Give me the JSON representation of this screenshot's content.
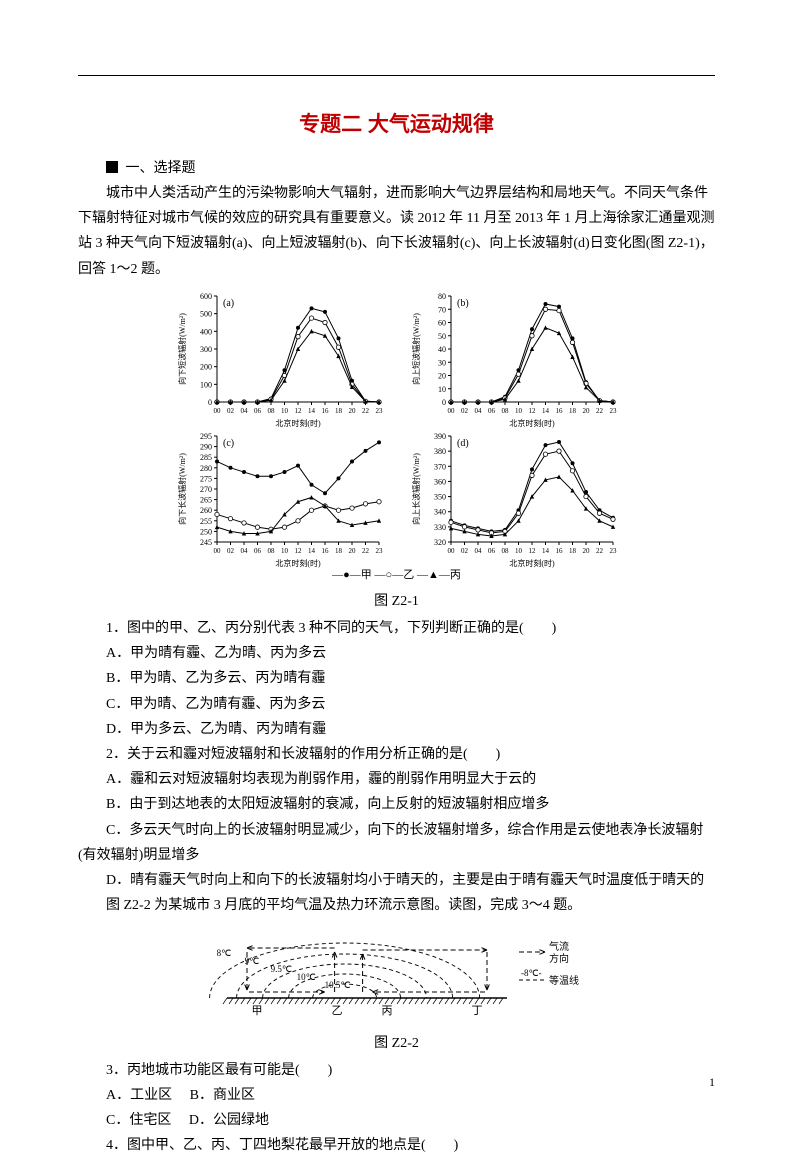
{
  "title": "专题二  大气运动规律",
  "section1_label": "一、选择题",
  "intro_para": "城市中人类活动产生的污染物影响大气辐射，进而影响大气边界层结构和局地天气。不同天气条件下辐射特征对城市气候的效应的研究具有重要意义。读 2012 年 11 月至 2013 年 1 月上海徐家汇通量观测站 3 种天气向下短波辐射(a)、向上短波辐射(b)、向下长波辐射(c)、向上长波辐射(d)日变化图(图 Z2-1)，回答 1～2 题。",
  "fig1_caption": "图 Z2-1",
  "legend_text": "—●—甲 —○—乙 —▲—丙",
  "chart_a": {
    "label": "(a)",
    "ylabel": "向下短波辐射(W/m²)",
    "xlabel": "北京时刻(时)",
    "xticks": [
      "00",
      "02",
      "04",
      "06",
      "08",
      "10",
      "12",
      "14",
      "16",
      "18",
      "20",
      "22",
      "23"
    ],
    "yticks": [
      "0",
      "100",
      "200",
      "300",
      "400",
      "500",
      "600"
    ],
    "series": {
      "jia": [
        0,
        0,
        0,
        0,
        20,
        180,
        420,
        530,
        510,
        360,
        120,
        5,
        0
      ],
      "yi": [
        0,
        0,
        0,
        0,
        15,
        150,
        370,
        475,
        450,
        310,
        100,
        4,
        0
      ],
      "bing": [
        0,
        0,
        0,
        0,
        10,
        120,
        300,
        400,
        375,
        260,
        85,
        3,
        0
      ]
    },
    "colors": {
      "axis": "#000000",
      "bg": "#ffffff"
    }
  },
  "chart_b": {
    "label": "(b)",
    "ylabel": "向上短波辐射(W/m²)",
    "xlabel": "北京时刻(时)",
    "xticks": [
      "00",
      "02",
      "04",
      "06",
      "08",
      "10",
      "12",
      "14",
      "16",
      "18",
      "20",
      "22",
      "23"
    ],
    "yticks": [
      "0",
      "10",
      "20",
      "30",
      "40",
      "50",
      "60",
      "70",
      "80"
    ],
    "series": {
      "jia": [
        0,
        0,
        0,
        0,
        4,
        24,
        55,
        74,
        72,
        48,
        15,
        1,
        0
      ],
      "yi": [
        0,
        0,
        0,
        0,
        3,
        21,
        50,
        70,
        69,
        45,
        14,
        1,
        0
      ],
      "bing": [
        0,
        0,
        0,
        0,
        2,
        16,
        40,
        56,
        52,
        34,
        11,
        1,
        0
      ]
    },
    "colors": {
      "axis": "#000000",
      "bg": "#ffffff"
    }
  },
  "chart_c": {
    "label": "(c)",
    "ylabel": "向下长波辐射(W/m²)",
    "xlabel": "北京时刻(时)",
    "xticks": [
      "00",
      "02",
      "04",
      "06",
      "08",
      "10",
      "12",
      "14",
      "16",
      "18",
      "20",
      "22",
      "23"
    ],
    "yticks": [
      "245",
      "250",
      "255",
      "260",
      "265",
      "270",
      "275",
      "280",
      "285",
      "290",
      "295"
    ],
    "series": {
      "jia": [
        283,
        280,
        278,
        276,
        276,
        278,
        281,
        272,
        268,
        275,
        283,
        288,
        292
      ],
      "yi": [
        258,
        256,
        254,
        252,
        251,
        252,
        255,
        260,
        262,
        260,
        261,
        263,
        264
      ],
      "bing": [
        252,
        250,
        249,
        249,
        250,
        258,
        264,
        266,
        262,
        255,
        253,
        254,
        255
      ]
    },
    "colors": {
      "axis": "#000000",
      "bg": "#ffffff"
    }
  },
  "chart_d": {
    "label": "(d)",
    "ylabel": "向上长波辐射(W/m²)",
    "xlabel": "北京时刻(时)",
    "xticks": [
      "00",
      "02",
      "04",
      "06",
      "08",
      "10",
      "12",
      "14",
      "16",
      "18",
      "20",
      "22",
      "23"
    ],
    "yticks": [
      "320",
      "330",
      "340",
      "350",
      "360",
      "370",
      "380",
      "390"
    ],
    "series": {
      "jia": [
        334,
        331,
        329,
        327,
        328,
        341,
        368,
        384,
        386,
        372,
        353,
        341,
        336
      ],
      "yi": [
        333,
        330,
        328,
        326,
        327,
        339,
        364,
        378,
        380,
        367,
        350,
        339,
        335
      ],
      "bing": [
        329,
        327,
        325,
        324,
        325,
        334,
        350,
        361,
        363,
        354,
        342,
        334,
        330
      ]
    },
    "colors": {
      "axis": "#000000",
      "bg": "#ffffff"
    }
  },
  "q1": {
    "stem": "1．图中的甲、乙、丙分别代表 3 种不同的天气，下列判断正确的是(　　)",
    "A": "A．甲为晴有霾、乙为晴、丙为多云",
    "B": "B．甲为晴、乙为多云、丙为晴有霾",
    "C": "C．甲为晴、乙为晴有霾、丙为多云",
    "D": "D．甲为多云、乙为晴、丙为晴有霾"
  },
  "q2": {
    "stem": "2．关于云和霾对短波辐射和长波辐射的作用分析正确的是(　　)",
    "A": "A．霾和云对短波辐射均表现为削弱作用，霾的削弱作用明显大于云的",
    "B": "B．由于到达地表的太阳短波辐射的衰减，向上反射的短波辐射相应增多",
    "C": "C．多云天气时向上的长波辐射明显减少，向下的长波辐射增多，综合作用是云使地表净长波辐射(有效辐射)明显增多",
    "D": "D．晴有霾天气时向上和向下的长波辐射均小于晴天的，主要是由于晴有霾天气时温度低于晴天的"
  },
  "intro_q3": "图 Z2-2 为某城市 3 月底的平均气温及热力环流示意图。读图，完成 3～4 题。",
  "fig2": {
    "caption": "图 Z2-2",
    "labels_bottom": [
      "甲",
      "乙",
      "丙",
      "丁"
    ],
    "isotherms": [
      "8℃",
      "9℃",
      "9.5℃",
      "10℃",
      "10.5℃"
    ],
    "legend_flow": "气流方向",
    "legend_iso": "等温线",
    "colors": {
      "line": "#000000"
    }
  },
  "q3": {
    "stem": "3．丙地城市功能区最有可能是(　　)",
    "A": "A．工业区",
    "B": "B．商业区",
    "C": "C．住宅区",
    "D": "D．公园绿地"
  },
  "q4": {
    "stem": "4．图中甲、乙、丙、丁四地梨花最早开放的地点是(　　)"
  },
  "page_number": "1"
}
